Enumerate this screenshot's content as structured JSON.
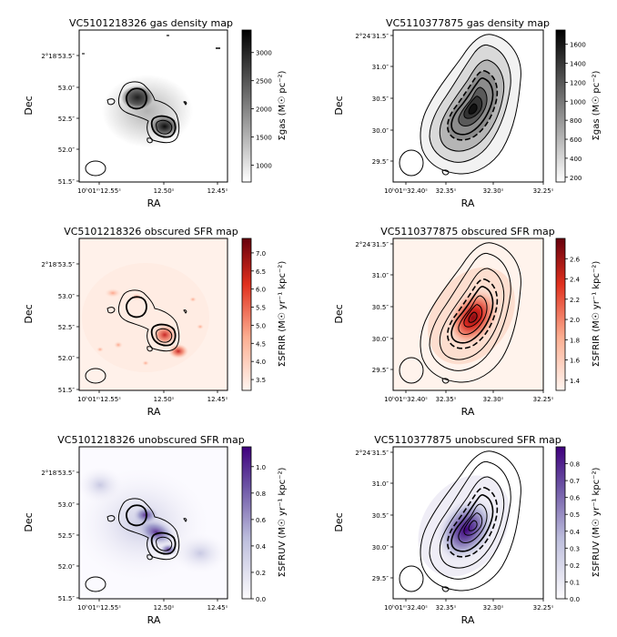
{
  "figure_type": "multi-panel astronomical maps",
  "chart_data": [
    {
      "type": "heatmap",
      "title": "VC5101218326 gas density map",
      "xlabel": "RA",
      "ylabel": "Dec",
      "x_ticks": [
        "10ʰ01ᵐ12.55ˢ",
        "12.50ˢ",
        "12.45ˢ"
      ],
      "y_ticks": [
        "2°18′53.5″",
        "53.0″",
        "52.5″",
        "52.0″",
        "51.5″"
      ],
      "colorbar": {
        "label": "Σgas (M☉ pc⁻²)",
        "ticks": [
          "1000",
          "1500",
          "2000",
          "2500",
          "3000"
        ],
        "range": [
          700,
          3400
        ],
        "colormap": "Greys"
      }
    },
    {
      "type": "heatmap",
      "title": "VC5110377875 gas density map",
      "xlabel": "RA",
      "ylabel": "Dec",
      "x_ticks": [
        "10ʰ01ᵐ32.40ˢ",
        "32.35ˢ",
        "32.30ˢ",
        "32.25ˢ"
      ],
      "y_ticks": [
        "2°24′31.5″",
        "31.0″",
        "30.5″",
        "30.0″",
        "29.5″"
      ],
      "colorbar": {
        "label": "Σgas (M☉ pc⁻²)",
        "ticks": [
          "200",
          "400",
          "600",
          "800",
          "1000",
          "1200",
          "1400",
          "1600"
        ],
        "range": [
          150,
          1750
        ],
        "colormap": "Greys"
      }
    },
    {
      "type": "heatmap",
      "title": "VC5101218326 obscured SFR map",
      "xlabel": "RA",
      "ylabel": "Dec",
      "x_ticks": [
        "10ʰ01ᵐ12.55ˢ",
        "12.50ˢ",
        "12.45ˢ"
      ],
      "y_ticks": [
        "2°18′53.5″",
        "53.0″",
        "52.5″",
        "52.0″",
        "51.5″"
      ],
      "colorbar": {
        "label": "ΣSFRIR (M☉ yr⁻¹ kpc⁻²)",
        "ticks": [
          "3.5",
          "4.0",
          "4.5",
          "5.0",
          "5.5",
          "6.0",
          "6.5",
          "7.0"
        ],
        "range": [
          3.2,
          7.4
        ],
        "colormap": "Reds"
      }
    },
    {
      "type": "heatmap",
      "title": "VC5110377875 obscured SFR map",
      "xlabel": "RA",
      "ylabel": "Dec",
      "x_ticks": [
        "10ʰ01ᵐ32.40ˢ",
        "32.35ˢ",
        "32.30ˢ",
        "32.25ˢ"
      ],
      "y_ticks": [
        "2°24′31.5″",
        "31.0″",
        "30.5″",
        "30.0″",
        "29.5″"
      ],
      "colorbar": {
        "label": "ΣSFRIR (M☉ yr⁻¹ kpc⁻²)",
        "ticks": [
          "1.4",
          "1.6",
          "1.8",
          "2.0",
          "2.2",
          "2.4",
          "2.6"
        ],
        "range": [
          1.3,
          2.8
        ],
        "colormap": "Reds"
      }
    },
    {
      "type": "heatmap",
      "title": "VC5101218326 unobscured SFR map",
      "xlabel": "RA",
      "ylabel": "Dec",
      "x_ticks": [
        "10ʰ01ᵐ12.55ˢ",
        "12.50ˢ",
        "12.45ˢ"
      ],
      "y_ticks": [
        "2°18′53.5″",
        "53.0″",
        "52.5″",
        "52.0″",
        "51.5″"
      ],
      "colorbar": {
        "label": "ΣSFRUV (M☉ yr⁻¹ kpc⁻²)",
        "ticks": [
          "0.0",
          "0.2",
          "0.4",
          "0.6",
          "0.8",
          "1.0"
        ],
        "range": [
          0.0,
          1.15
        ],
        "colormap": "Purples"
      }
    },
    {
      "type": "heatmap",
      "title": "VC5110377875 unobscured SFR map",
      "xlabel": "RA",
      "ylabel": "Dec",
      "x_ticks": [
        "10ʰ01ᵐ32.40ˢ",
        "32.35ˢ",
        "32.30ˢ",
        "32.25ˢ"
      ],
      "y_ticks": [
        "2°24′31.5″",
        "31.0″",
        "30.5″",
        "30.0″",
        "29.5″"
      ],
      "colorbar": {
        "label": "ΣSFRUV (M☉ yr⁻¹ kpc⁻²)",
        "ticks": [
          "0.0",
          "0.1",
          "0.2",
          "0.3",
          "0.4",
          "0.5",
          "0.6",
          "0.7",
          "0.8"
        ],
        "range": [
          0.0,
          0.9
        ],
        "colormap": "Purples"
      }
    }
  ]
}
